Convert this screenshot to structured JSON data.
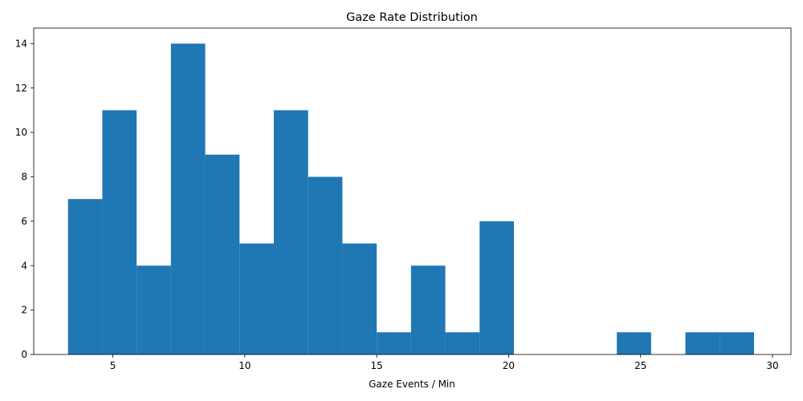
{
  "chart_data": {
    "type": "bar",
    "title": "Gaze Rate Distribution",
    "xlabel": "Gaze Events / Min",
    "ylabel": "",
    "bar_color": "#1f77b4",
    "xlim": [
      2.0,
      30.7
    ],
    "ylim": [
      0,
      14.7
    ],
    "xticks": [
      5,
      10,
      15,
      20,
      25,
      30
    ],
    "yticks": [
      0,
      2,
      4,
      6,
      8,
      10,
      12,
      14
    ],
    "bins": [
      {
        "x0": 3.3,
        "x1": 4.6,
        "count": 7
      },
      {
        "x0": 4.6,
        "x1": 5.9,
        "count": 11
      },
      {
        "x0": 5.9,
        "x1": 7.2,
        "count": 4
      },
      {
        "x0": 7.2,
        "x1": 8.5,
        "count": 14
      },
      {
        "x0": 8.5,
        "x1": 9.8,
        "count": 9
      },
      {
        "x0": 9.8,
        "x1": 11.1,
        "count": 5
      },
      {
        "x0": 11.1,
        "x1": 12.4,
        "count": 11
      },
      {
        "x0": 12.4,
        "x1": 13.7,
        "count": 8
      },
      {
        "x0": 13.7,
        "x1": 15.0,
        "count": 5
      },
      {
        "x0": 15.0,
        "x1": 16.3,
        "count": 1
      },
      {
        "x0": 16.3,
        "x1": 17.6,
        "count": 4
      },
      {
        "x0": 17.6,
        "x1": 18.9,
        "count": 1
      },
      {
        "x0": 18.9,
        "x1": 20.2,
        "count": 6
      },
      {
        "x0": 20.2,
        "x1": 21.5,
        "count": 0
      },
      {
        "x0": 21.5,
        "x1": 22.8,
        "count": 0
      },
      {
        "x0": 22.8,
        "x1": 24.1,
        "count": 0
      },
      {
        "x0": 24.1,
        "x1": 25.4,
        "count": 1
      },
      {
        "x0": 25.4,
        "x1": 26.7,
        "count": 0
      },
      {
        "x0": 26.7,
        "x1": 28.0,
        "count": 1
      },
      {
        "x0": 28.0,
        "x1": 29.3,
        "count": 1
      }
    ]
  }
}
